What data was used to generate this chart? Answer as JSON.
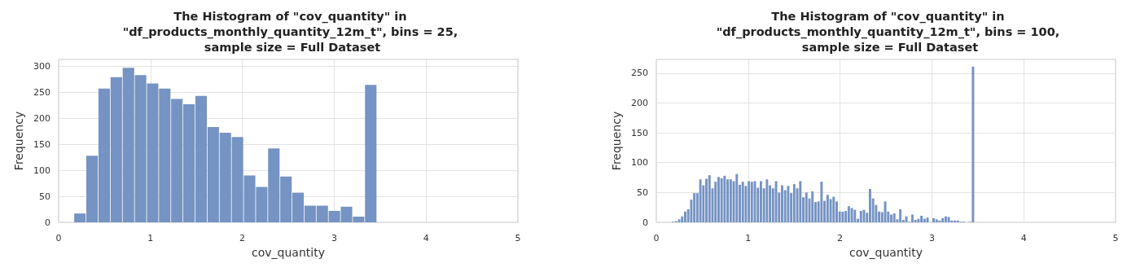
{
  "chart_data": [
    {
      "type": "histogram",
      "title": "The Histogram of \"cov_quantity\" in \"df_products_monthly_quantity_12m_t\", bins = 25, sample size = Full Dataset",
      "xlabel": "cov_quantity",
      "ylabel": "Frequency",
      "color": "#7593c3",
      "bins": [
        0.166,
        0.298,
        0.43,
        0.562,
        0.694,
        0.826,
        0.958,
        1.089,
        1.221,
        1.353,
        1.485,
        1.617,
        1.749,
        1.881,
        2.013,
        2.145,
        2.277,
        2.409,
        2.541,
        2.672,
        2.804,
        2.936,
        3.068,
        3.2,
        3.332,
        3.464
      ],
      "values": [
        17,
        128,
        257,
        279,
        297,
        283,
        267,
        257,
        237,
        227,
        243,
        183,
        172,
        164,
        90,
        68,
        142,
        88,
        57,
        32,
        32,
        22,
        30,
        11,
        264
      ],
      "xlim": [
        0,
        5
      ],
      "xticks": [
        0,
        1,
        2,
        3,
        4,
        5
      ],
      "ylim": [
        0,
        313
      ],
      "yticks": [
        0,
        50,
        100,
        150,
        200,
        250,
        300
      ],
      "grid": true
    },
    {
      "type": "histogram",
      "title": "The Histogram of \"cov_quantity\" in \"df_products_monthly_quantity_12m_t\", bins = 100, sample size = Full Dataset",
      "xlabel": "cov_quantity",
      "ylabel": "Frequency",
      "color": "#7593c3",
      "bins": [
        0.166,
        0.199,
        0.232,
        0.265,
        0.298,
        0.331,
        0.364,
        0.397,
        0.43,
        0.463,
        0.496,
        0.529,
        0.562,
        0.595,
        0.628,
        0.661,
        0.694,
        0.727,
        0.76,
        0.793,
        0.826,
        0.859,
        0.892,
        0.925,
        0.958,
        0.991,
        1.023,
        1.056,
        1.089,
        1.122,
        1.155,
        1.188,
        1.221,
        1.254,
        1.287,
        1.32,
        1.353,
        1.386,
        1.419,
        1.452,
        1.485,
        1.518,
        1.551,
        1.584,
        1.617,
        1.65,
        1.683,
        1.716,
        1.749,
        1.782,
        1.815,
        1.848,
        1.881,
        1.914,
        1.947,
        1.98,
        2.013,
        2.046,
        2.079,
        2.112,
        2.145,
        2.178,
        2.211,
        2.244,
        2.277,
        2.31,
        2.343,
        2.376,
        2.409,
        2.442,
        2.475,
        2.508,
        2.541,
        2.574,
        2.607,
        2.64,
        2.672,
        2.705,
        2.738,
        2.771,
        2.804,
        2.837,
        2.87,
        2.903,
        2.936,
        2.969,
        3.002,
        3.035,
        3.068,
        3.101,
        3.134,
        3.167,
        3.2,
        3.233,
        3.266,
        3.299,
        3.332,
        3.365,
        3.398,
        3.431,
        3.464
      ],
      "values": [
        1,
        2,
        5,
        10,
        18,
        22,
        38,
        49,
        49,
        72,
        62,
        73,
        79,
        57,
        68,
        76,
        74,
        78,
        72,
        72,
        69,
        81,
        63,
        68,
        61,
        69,
        68,
        69,
        58,
        69,
        57,
        72,
        62,
        57,
        69,
        50,
        62,
        54,
        61,
        49,
        64,
        57,
        69,
        42,
        50,
        40,
        52,
        34,
        35,
        68,
        36,
        46,
        39,
        43,
        35,
        18,
        18,
        19,
        27,
        24,
        21,
        6,
        19,
        21,
        16,
        56,
        40,
        29,
        18,
        17,
        35,
        18,
        13,
        15,
        5,
        22,
        4,
        10,
        1,
        13,
        4,
        6,
        11,
        6,
        8,
        0,
        7,
        5,
        3,
        7,
        10,
        9,
        3,
        3,
        3,
        1,
        1,
        0,
        1,
        261
      ],
      "xlim": [
        0,
        5
      ],
      "xticks": [
        0,
        1,
        2,
        3,
        4,
        5
      ],
      "ylim": [
        0,
        273
      ],
      "yticks": [
        0,
        50,
        100,
        150,
        200,
        250
      ],
      "grid": true
    }
  ]
}
